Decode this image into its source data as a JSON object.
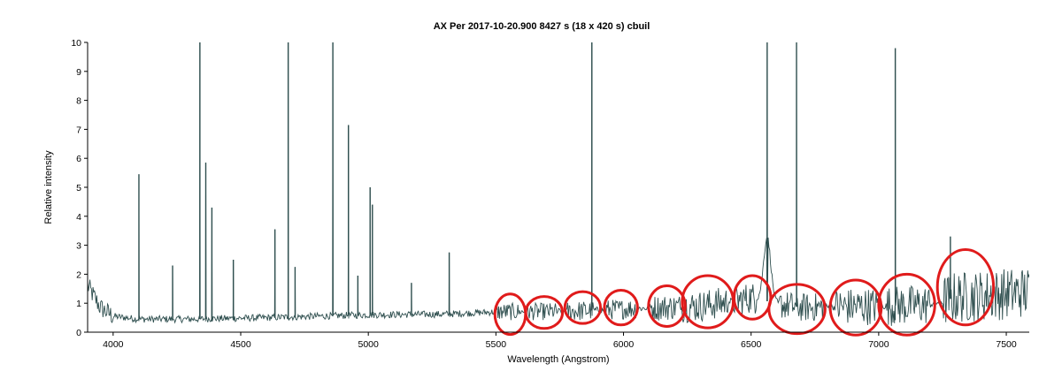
{
  "chart_data": {
    "type": "line",
    "title": "AX Per  2017-10-20.900  8427 s (18 x 420 s)  cbuil",
    "xlabel": "Wavelength (Angstrom)",
    "ylabel": "Relative intensity",
    "xlim": [
      3900,
      7590
    ],
    "ylim": [
      0,
      10
    ],
    "xticks": [
      "4000",
      "4500",
      "5000",
      "5500",
      "6000",
      "6500",
      "7000",
      "7500"
    ],
    "yticks": [
      "0",
      "1",
      "2",
      "3",
      "4",
      "5",
      "6",
      "7",
      "8",
      "9",
      "10"
    ],
    "grid": false,
    "legend": "none",
    "line_color": "#2f4f4f",
    "highlight_color": "#e01b1b",
    "continuum": [
      [
        3900,
        1.6
      ],
      [
        3950,
        0.85
      ],
      [
        4000,
        0.55
      ],
      [
        4100,
        0.45
      ],
      [
        4300,
        0.45
      ],
      [
        4600,
        0.5
      ],
      [
        4800,
        0.55
      ],
      [
        5000,
        0.6
      ],
      [
        5300,
        0.62
      ],
      [
        5500,
        0.7
      ],
      [
        5800,
        0.72
      ],
      [
        6000,
        0.8
      ],
      [
        6300,
        0.9
      ],
      [
        6450,
        1.1
      ],
      [
        6500,
        1.2
      ],
      [
        6620,
        0.95
      ],
      [
        6700,
        0.85
      ],
      [
        7000,
        0.9
      ],
      [
        7200,
        0.95
      ],
      [
        7300,
        1.2
      ],
      [
        7400,
        1.25
      ],
      [
        7590,
        1.4
      ]
    ],
    "emission_lines": [
      {
        "x": 4101,
        "y": 5.45
      },
      {
        "x": 4233,
        "y": 2.3
      },
      {
        "x": 4340,
        "y": 10
      },
      {
        "x": 4363,
        "y": 5.85
      },
      {
        "x": 4387,
        "y": 4.3
      },
      {
        "x": 4471,
        "y": 2.5
      },
      {
        "x": 4634,
        "y": 3.55
      },
      {
        "x": 4686,
        "y": 10
      },
      {
        "x": 4713,
        "y": 2.25
      },
      {
        "x": 4861,
        "y": 10
      },
      {
        "x": 4922,
        "y": 7.15
      },
      {
        "x": 4959,
        "y": 1.95
      },
      {
        "x": 5007,
        "y": 5.0
      },
      {
        "x": 5016,
        "y": 4.4
      },
      {
        "x": 5169,
        "y": 1.7
      },
      {
        "x": 5317,
        "y": 2.75
      },
      {
        "x": 5876,
        "y": 10
      },
      {
        "x": 6563,
        "y": 10
      },
      {
        "x": 6678,
        "y": 10
      },
      {
        "x": 7065,
        "y": 9.8
      },
      {
        "x": 7281,
        "y": 3.3
      }
    ],
    "noise_regions": [
      {
        "from": 5500,
        "to": 5590,
        "amplitude": 0.3
      },
      {
        "from": 5620,
        "to": 5740,
        "amplitude": 0.3
      },
      {
        "from": 5780,
        "to": 5880,
        "amplitude": 0.35
      },
      {
        "from": 5930,
        "to": 6050,
        "amplitude": 0.35
      },
      {
        "from": 6110,
        "to": 6220,
        "amplitude": 0.45
      },
      {
        "from": 6230,
        "to": 6410,
        "amplitude": 0.55
      },
      {
        "from": 6430,
        "to": 6520,
        "amplitude": 0.55
      },
      {
        "from": 6610,
        "to": 6790,
        "amplitude": 0.5
      },
      {
        "from": 6830,
        "to": 7010,
        "amplitude": 0.65
      },
      {
        "from": 7030,
        "to": 7200,
        "amplitude": 0.7
      },
      {
        "from": 7250,
        "to": 7590,
        "amplitude": 0.9
      }
    ],
    "annotations": [
      {
        "shape": "ellipse",
        "x": 5556,
        "y": 0.62,
        "rx": 60,
        "ry": 0.7
      },
      {
        "shape": "ellipse",
        "x": 5689,
        "y": 0.68,
        "rx": 72,
        "ry": 0.55
      },
      {
        "shape": "ellipse",
        "x": 5840,
        "y": 0.85,
        "rx": 70,
        "ry": 0.55
      },
      {
        "shape": "ellipse",
        "x": 5990,
        "y": 0.85,
        "rx": 65,
        "ry": 0.6
      },
      {
        "shape": "ellipse",
        "x": 6170,
        "y": 0.9,
        "rx": 72,
        "ry": 0.7
      },
      {
        "shape": "ellipse",
        "x": 6330,
        "y": 1.05,
        "rx": 100,
        "ry": 0.9
      },
      {
        "shape": "ellipse",
        "x": 6505,
        "y": 1.2,
        "rx": 72,
        "ry": 0.75
      },
      {
        "shape": "ellipse",
        "x": 6680,
        "y": 0.8,
        "rx": 110,
        "ry": 0.85
      },
      {
        "shape": "ellipse",
        "x": 6910,
        "y": 0.85,
        "rx": 100,
        "ry": 0.95
      },
      {
        "shape": "ellipse",
        "x": 7110,
        "y": 0.95,
        "rx": 110,
        "ry": 1.05
      },
      {
        "shape": "ellipse",
        "x": 7340,
        "y": 1.55,
        "rx": 110,
        "ry": 1.3
      }
    ]
  }
}
